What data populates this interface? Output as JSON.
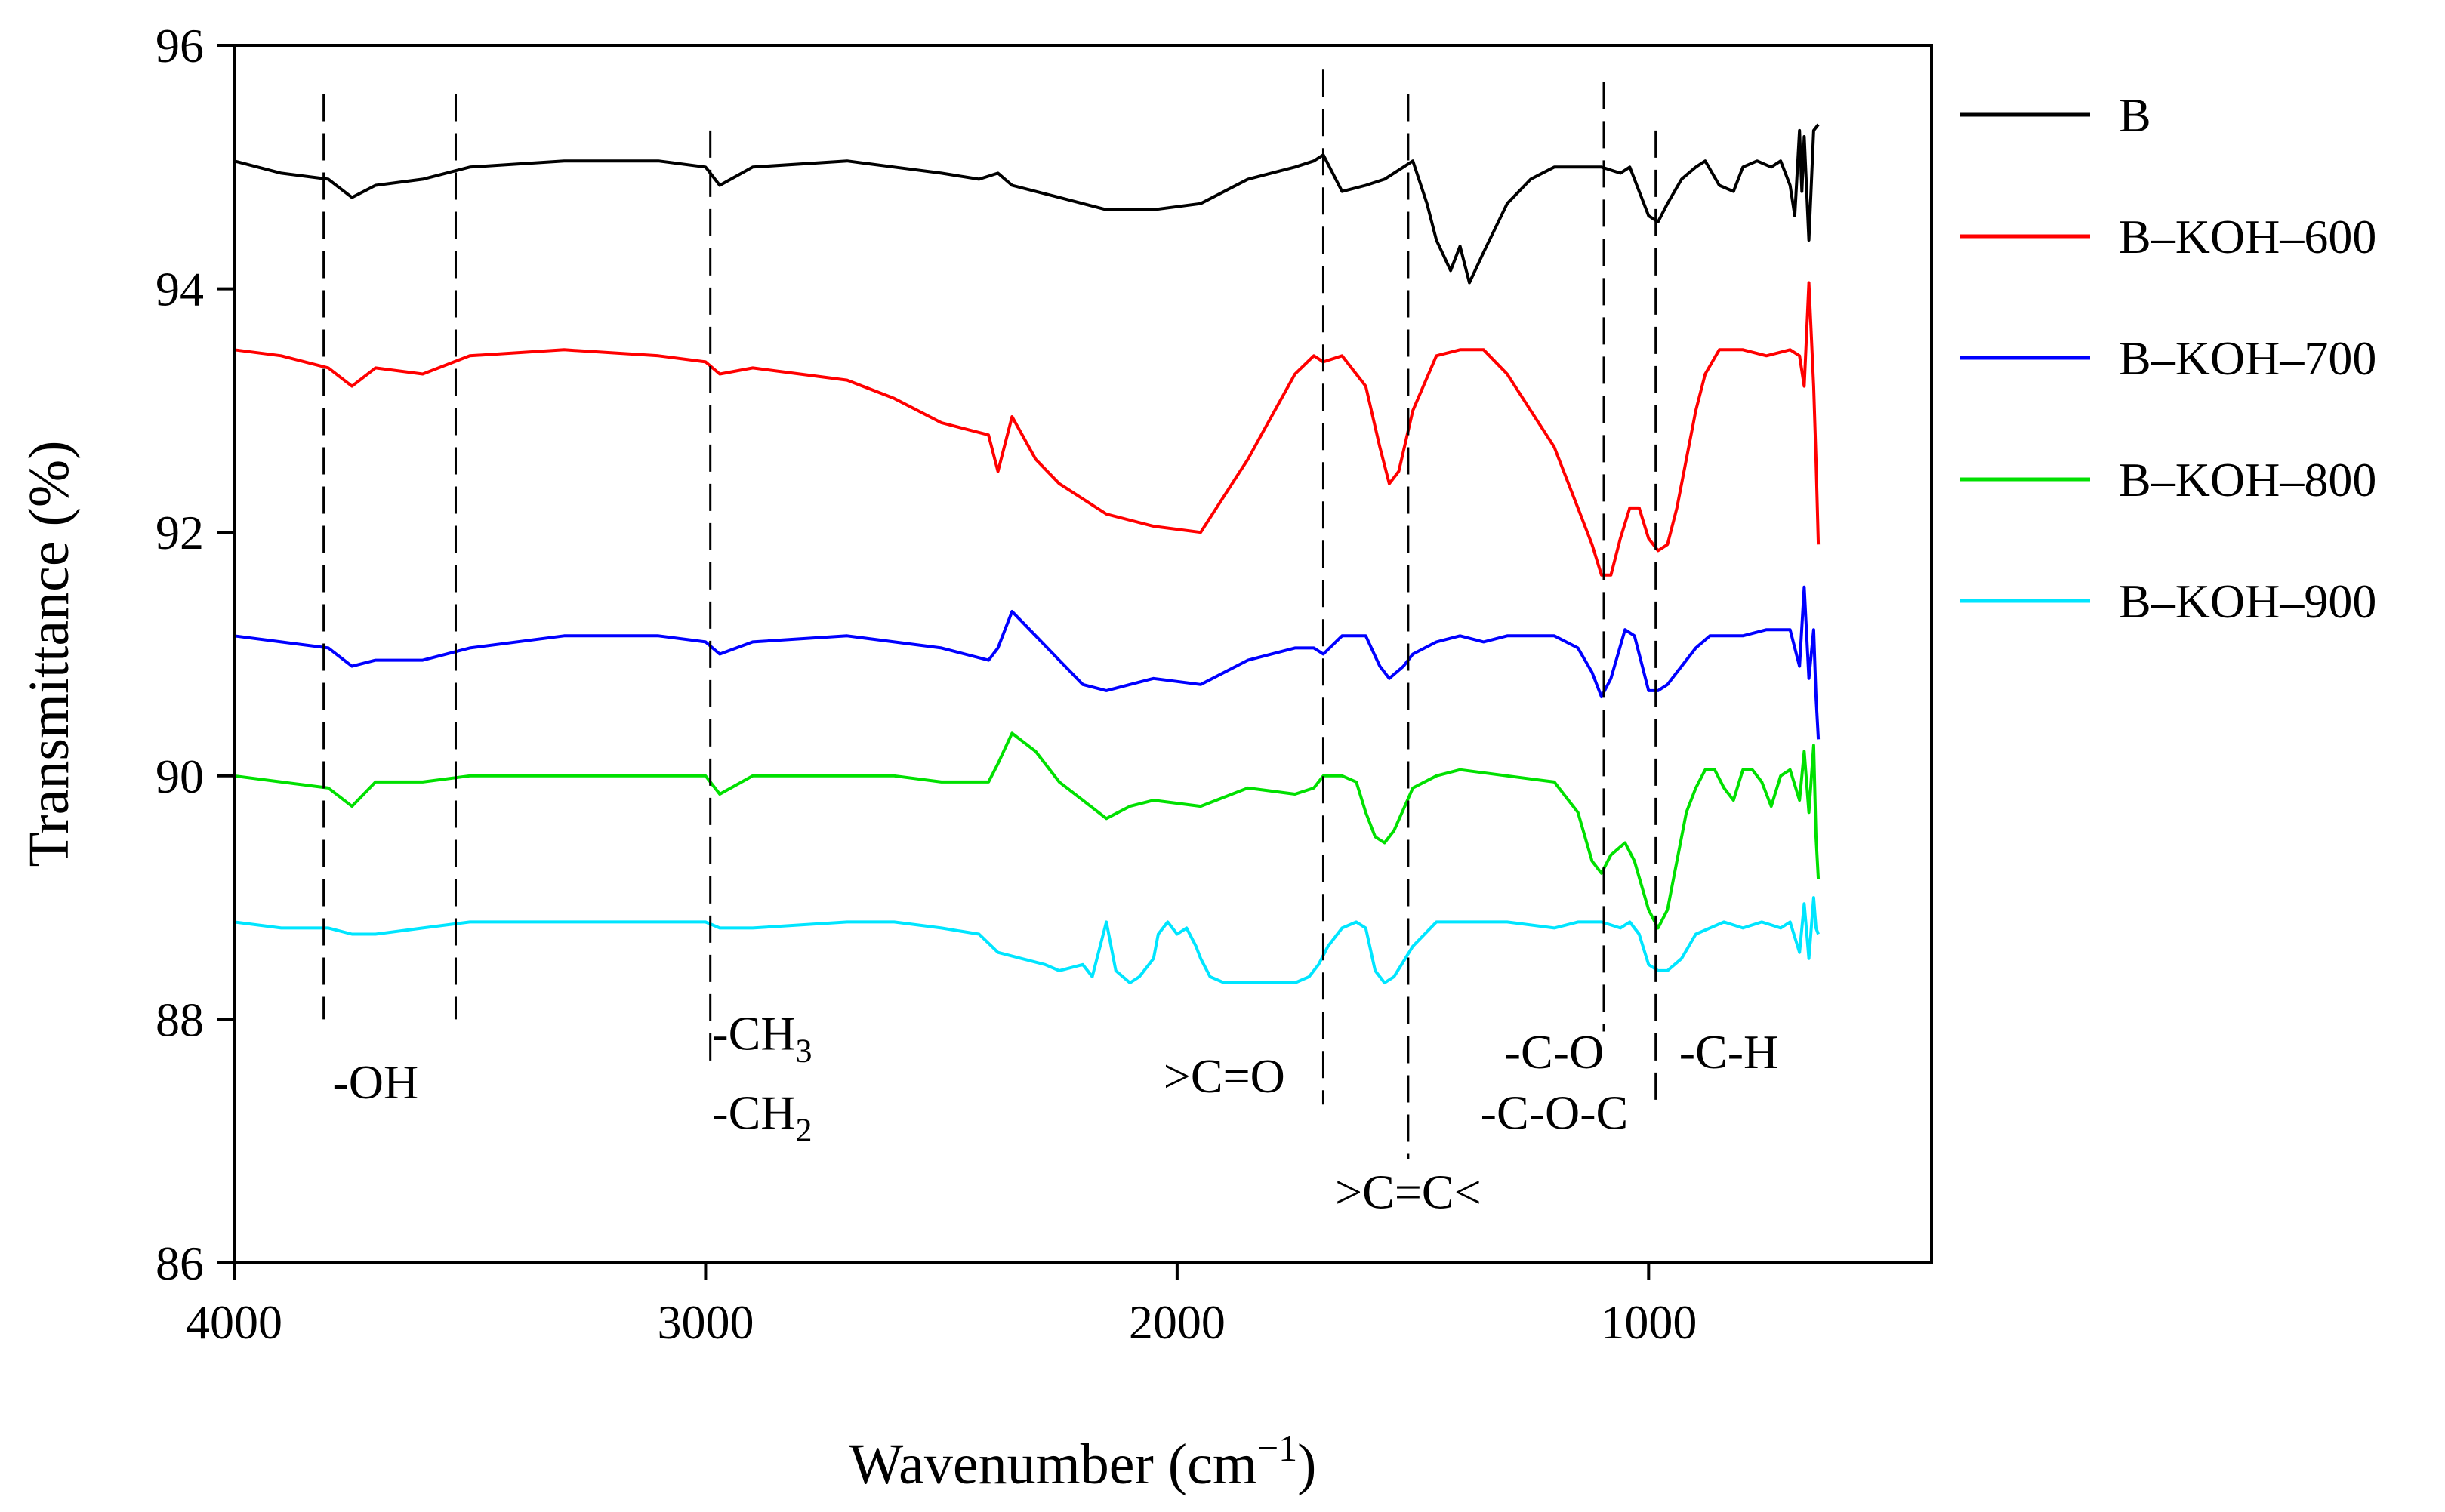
{
  "chart_data": {
    "type": "line",
    "title": "",
    "xlabel": "Wavenumber (cm",
    "xlabel_sup": "−1",
    "xlabel_close": ")",
    "ylabel": "Transmittance (%)",
    "xlim": [
      4000,
      400
    ],
    "ylim": [
      86,
      96
    ],
    "xticks": [
      4000,
      3000,
      2000,
      1000
    ],
    "yticks": [
      86,
      88,
      90,
      92,
      94,
      96
    ],
    "grid": false,
    "legend_position": "right",
    "series": [
      {
        "name": "B",
        "color": "#000000",
        "x": [
          4000,
          3900,
          3800,
          3750,
          3700,
          3600,
          3500,
          3300,
          3100,
          3000,
          2970,
          2900,
          2700,
          2600,
          2500,
          2420,
          2380,
          2350,
          2300,
          2250,
          2150,
          2050,
          1950,
          1850,
          1750,
          1710,
          1690,
          1650,
          1600,
          1560,
          1520,
          1500,
          1470,
          1450,
          1420,
          1400,
          1380,
          1350,
          1300,
          1250,
          1200,
          1150,
          1100,
          1060,
          1040,
          1000,
          980,
          960,
          930,
          900,
          880,
          850,
          820,
          800,
          770,
          740,
          720,
          700,
          690,
          680,
          675,
          670,
          660,
          650,
          640
        ],
        "y": [
          95.05,
          94.95,
          94.9,
          94.75,
          94.85,
          94.9,
          95.0,
          95.05,
          95.05,
          95.0,
          94.85,
          95.0,
          95.05,
          95.0,
          94.95,
          94.9,
          94.95,
          94.85,
          94.8,
          94.75,
          94.65,
          94.65,
          94.7,
          94.9,
          95.0,
          95.05,
          95.1,
          94.8,
          94.85,
          94.9,
          95.0,
          95.05,
          94.7,
          94.4,
          94.15,
          94.35,
          94.05,
          94.3,
          94.7,
          94.9,
          95.0,
          95.0,
          95.0,
          94.95,
          95.0,
          94.6,
          94.55,
          94.7,
          94.9,
          95.0,
          95.05,
          94.85,
          94.8,
          95.0,
          95.05,
          95.0,
          95.05,
          94.85,
          94.6,
          95.3,
          94.8,
          95.25,
          94.4,
          95.3,
          95.35
        ]
      },
      {
        "name": "B–KOH–600",
        "color": "#ff0000",
        "x": [
          4000,
          3900,
          3800,
          3750,
          3700,
          3600,
          3500,
          3300,
          3100,
          3000,
          2970,
          2900,
          2800,
          2700,
          2600,
          2500,
          2400,
          2380,
          2350,
          2300,
          2250,
          2150,
          2050,
          1950,
          1850,
          1750,
          1710,
          1690,
          1650,
          1600,
          1570,
          1550,
          1530,
          1500,
          1450,
          1400,
          1350,
          1300,
          1250,
          1200,
          1150,
          1120,
          1100,
          1080,
          1060,
          1040,
          1020,
          1000,
          980,
          960,
          940,
          920,
          900,
          880,
          850,
          800,
          750,
          700,
          680,
          670,
          660,
          650,
          645,
          640
        ],
        "y": [
          93.5,
          93.45,
          93.35,
          93.2,
          93.35,
          93.3,
          93.45,
          93.5,
          93.45,
          93.4,
          93.3,
          93.35,
          93.3,
          93.25,
          93.1,
          92.9,
          92.8,
          92.5,
          92.95,
          92.6,
          92.4,
          92.15,
          92.05,
          92.0,
          92.6,
          93.3,
          93.45,
          93.4,
          93.45,
          93.2,
          92.7,
          92.4,
          92.5,
          93.0,
          93.45,
          93.5,
          93.5,
          93.3,
          93.0,
          92.7,
          92.2,
          91.9,
          91.65,
          91.65,
          91.95,
          92.2,
          92.2,
          91.95,
          91.85,
          91.9,
          92.2,
          92.6,
          93.0,
          93.3,
          93.5,
          93.5,
          93.45,
          93.5,
          93.45,
          93.2,
          94.05,
          93.2,
          92.6,
          91.9
        ]
      },
      {
        "name": "B–KOH–700",
        "color": "#0000ff",
        "x": [
          4000,
          3900,
          3800,
          3750,
          3700,
          3600,
          3500,
          3300,
          3100,
          3000,
          2970,
          2900,
          2700,
          2600,
          2500,
          2450,
          2400,
          2380,
          2350,
          2300,
          2250,
          2200,
          2150,
          2100,
          2050,
          1950,
          1850,
          1750,
          1710,
          1690,
          1650,
          1600,
          1570,
          1550,
          1520,
          1500,
          1450,
          1400,
          1350,
          1300,
          1250,
          1200,
          1150,
          1120,
          1100,
          1080,
          1050,
          1030,
          1010,
          1000,
          980,
          960,
          930,
          900,
          870,
          850,
          800,
          750,
          700,
          680,
          670,
          660,
          650,
          645,
          640
        ],
        "y": [
          91.15,
          91.1,
          91.05,
          90.9,
          90.95,
          90.95,
          91.05,
          91.15,
          91.15,
          91.1,
          91.0,
          91.1,
          91.15,
          91.1,
          91.05,
          91.0,
          90.95,
          91.05,
          91.35,
          91.15,
          90.95,
          90.75,
          90.7,
          90.75,
          90.8,
          90.75,
          90.95,
          91.05,
          91.05,
          91.0,
          91.15,
          91.15,
          90.9,
          90.8,
          90.9,
          91.0,
          91.1,
          91.15,
          91.1,
          91.15,
          91.15,
          91.15,
          91.05,
          90.85,
          90.65,
          90.8,
          91.2,
          91.15,
          90.85,
          90.7,
          90.7,
          90.75,
          90.9,
          91.05,
          91.15,
          91.15,
          91.15,
          91.2,
          91.2,
          90.9,
          91.55,
          90.8,
          91.2,
          90.65,
          90.3
        ]
      },
      {
        "name": "B–KOH–800",
        "color": "#00e000",
        "x": [
          4000,
          3900,
          3800,
          3750,
          3700,
          3600,
          3500,
          3300,
          3100,
          3000,
          2970,
          2900,
          2700,
          2600,
          2500,
          2450,
          2400,
          2380,
          2350,
          2300,
          2250,
          2200,
          2150,
          2100,
          2050,
          1950,
          1850,
          1750,
          1710,
          1690,
          1650,
          1620,
          1600,
          1580,
          1560,
          1540,
          1500,
          1450,
          1400,
          1300,
          1200,
          1150,
          1120,
          1100,
          1080,
          1050,
          1030,
          1000,
          980,
          960,
          940,
          920,
          900,
          880,
          860,
          840,
          820,
          800,
          780,
          760,
          740,
          720,
          700,
          680,
          670,
          660,
          650,
          645,
          640
        ],
        "y": [
          90.0,
          89.95,
          89.9,
          89.75,
          89.95,
          89.95,
          90.0,
          90.0,
          90.0,
          90.0,
          89.85,
          90.0,
          90.0,
          90.0,
          89.95,
          89.95,
          89.95,
          90.1,
          90.35,
          90.2,
          89.95,
          89.8,
          89.65,
          89.75,
          89.8,
          89.75,
          89.9,
          89.85,
          89.9,
          90.0,
          90.0,
          89.95,
          89.7,
          89.5,
          89.45,
          89.55,
          89.9,
          90.0,
          90.05,
          90.0,
          89.95,
          89.7,
          89.3,
          89.2,
          89.35,
          89.45,
          89.3,
          88.9,
          88.75,
          88.9,
          89.3,
          89.7,
          89.9,
          90.05,
          90.05,
          89.9,
          89.8,
          90.05,
          90.05,
          89.95,
          89.75,
          90.0,
          90.05,
          89.8,
          90.2,
          89.7,
          90.25,
          89.5,
          89.15
        ]
      },
      {
        "name": "B–KOH–900",
        "color": "#00e5ff",
        "x": [
          4000,
          3900,
          3800,
          3750,
          3700,
          3600,
          3500,
          3300,
          3100,
          3000,
          2970,
          2900,
          2700,
          2600,
          2500,
          2420,
          2380,
          2330,
          2280,
          2250,
          2200,
          2180,
          2150,
          2130,
          2100,
          2080,
          2050,
          2040,
          2020,
          2000,
          1980,
          1960,
          1950,
          1930,
          1900,
          1800,
          1750,
          1720,
          1700,
          1680,
          1650,
          1620,
          1600,
          1580,
          1560,
          1540,
          1500,
          1450,
          1400,
          1300,
          1200,
          1150,
          1100,
          1060,
          1040,
          1020,
          1000,
          980,
          960,
          930,
          900,
          870,
          840,
          800,
          760,
          720,
          700,
          680,
          670,
          660,
          650,
          645,
          640
        ],
        "y": [
          88.8,
          88.75,
          88.75,
          88.7,
          88.7,
          88.75,
          88.8,
          88.8,
          88.8,
          88.8,
          88.75,
          88.75,
          88.8,
          88.8,
          88.75,
          88.7,
          88.55,
          88.5,
          88.45,
          88.4,
          88.45,
          88.35,
          88.8,
          88.4,
          88.3,
          88.35,
          88.5,
          88.7,
          88.8,
          88.7,
          88.75,
          88.6,
          88.5,
          88.35,
          88.3,
          88.3,
          88.3,
          88.35,
          88.45,
          88.6,
          88.75,
          88.8,
          88.75,
          88.4,
          88.3,
          88.35,
          88.6,
          88.8,
          88.8,
          88.8,
          88.75,
          88.8,
          88.8,
          88.75,
          88.8,
          88.7,
          88.45,
          88.4,
          88.4,
          88.5,
          88.7,
          88.75,
          88.8,
          88.75,
          88.8,
          88.75,
          88.8,
          88.55,
          88.95,
          88.5,
          89.0,
          88.75,
          88.7
        ]
      }
    ],
    "guide_lines": [
      {
        "x": 3810,
        "from": 95.6,
        "to": 88.0
      },
      {
        "x": 3530,
        "from": 95.6,
        "to": 88.0
      },
      {
        "x": 2990,
        "from": 95.3,
        "to": 87.6
      },
      {
        "x": 1690,
        "from": 95.8,
        "to": 87.3
      },
      {
        "x": 1510,
        "from": 95.6,
        "to": 86.85
      },
      {
        "x": 1095,
        "from": 95.7,
        "to": 87.9
      },
      {
        "x": 985,
        "from": 95.3,
        "to": 87.3
      }
    ],
    "annotations": [
      {
        "id": "oh",
        "x": 3700,
        "y": 87.35,
        "text": "-OH"
      },
      {
        "id": "ch3",
        "x": 2880,
        "y": 87.75,
        "text": "-CH",
        "sub": "3"
      },
      {
        "id": "ch2",
        "x": 2880,
        "y": 87.1,
        "text": "-CH",
        "sub": "2"
      },
      {
        "id": "co",
        "x": 1900,
        "y": 87.4,
        "text": ">C=O"
      },
      {
        "id": "cc",
        "x": 1510,
        "y": 86.45,
        "text": ">C=C<"
      },
      {
        "id": "c-o",
        "x": 1200,
        "y": 87.6,
        "text": "-C-O"
      },
      {
        "id": "coc",
        "x": 1200,
        "y": 87.1,
        "text": "-C-O-C"
      },
      {
        "id": "ch",
        "x": 830,
        "y": 87.6,
        "text": "-C-H"
      }
    ]
  }
}
